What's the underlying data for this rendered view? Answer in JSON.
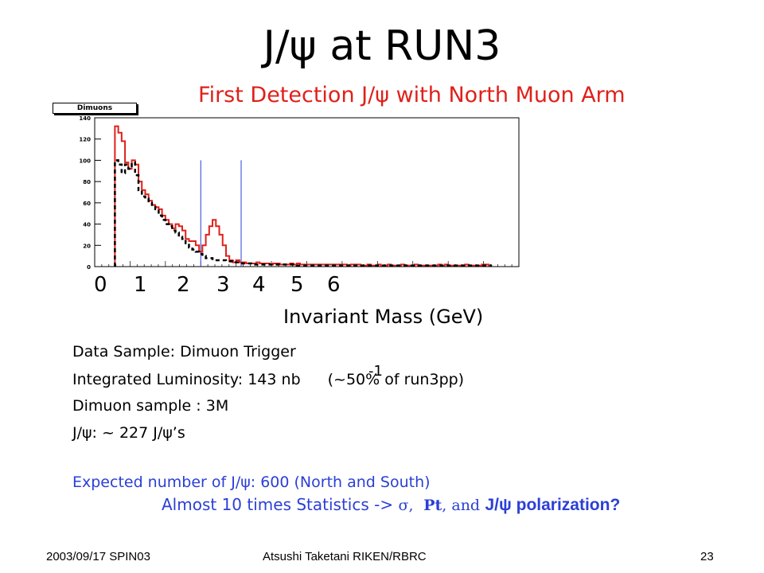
{
  "slide": {
    "title": "J/ψ   at RUN3",
    "subtitle": "First Detection J/ψ with North Muon Arm",
    "legend_label": "Dimuons",
    "info_lines": [
      "Data Sample: Dimuon Trigger",
      "Integrated Luminosity: 143 nb",
      "Dimuon sample : 3M",
      "J/ψ: ~ 227 J/ψ’s"
    ],
    "lumi_exponent": "-1",
    "lumi_suffix": "(~50% of run3pp)",
    "expected_line": "Expected number of J/ψ: 600 (North and South)",
    "stats_prefix": "Almost 10 times Statistics -> ",
    "stats_sigma": "σ,",
    "stats_pt": "Pt",
    "stats_and": ", and",
    "stats_pol": "J/ψ polarization?",
    "footer_left": "2003/09/17 SPIN03",
    "footer_center": "Atsushi Taketani RIKEN/RBRC",
    "footer_right": "23"
  },
  "colors": {
    "subtitle": "#e0201a",
    "blue_text": "#2b3fd6",
    "signal": "#e0201a",
    "background": "#000000",
    "window": "#2b3fd6"
  },
  "chart_data": {
    "type": "histogram",
    "title": "Dimuons",
    "xlabel": "Invariant Mass (GeV)",
    "ylabel": "",
    "x_ticks": [
      "0",
      "1",
      "2",
      "3",
      "4",
      "5",
      "6"
    ],
    "y_ticks": [
      0,
      20,
      40,
      60,
      80,
      100,
      120,
      140
    ],
    "xlim": [
      -0.6,
      12.0
    ],
    "ylim": [
      0,
      140
    ],
    "bin_width": 0.1,
    "bin_start": 0.0,
    "mass_window_lines": [
      2.55,
      3.75
    ],
    "series": [
      {
        "style": "solid-red",
        "values": [
          132,
          126,
          118,
          98,
          92,
          100,
          96,
          80,
          72,
          68,
          62,
          58,
          56,
          54,
          48,
          44,
          40,
          36,
          40,
          38,
          34,
          26,
          24,
          24,
          20,
          14,
          20,
          30,
          38,
          44,
          38,
          30,
          20,
          10,
          6,
          4,
          6,
          4,
          4,
          3,
          3,
          3,
          4,
          3,
          3,
          3,
          2,
          3,
          3,
          2,
          2,
          2,
          3,
          2,
          3,
          2,
          2,
          2,
          2,
          2,
          2,
          2,
          2,
          2,
          2,
          2,
          2,
          2,
          2,
          1,
          2,
          2,
          2,
          1,
          1,
          2,
          1,
          1,
          2,
          1,
          1,
          2,
          1,
          1,
          1,
          2,
          1,
          1,
          1,
          2,
          1,
          1,
          1,
          1,
          1,
          1,
          2,
          1,
          2,
          1,
          1,
          1,
          1,
          1,
          2,
          1,
          1,
          1,
          1,
          2,
          2,
          1
        ]
      },
      {
        "style": "dashed-black",
        "values": [
          100,
          96,
          88,
          96,
          92,
          98,
          86,
          72,
          66,
          64,
          60,
          58,
          54,
          48,
          44,
          40,
          38,
          34,
          32,
          28,
          26,
          22,
          18,
          16,
          14,
          12,
          10,
          8,
          8,
          6,
          6,
          6,
          6,
          5,
          5,
          4,
          4,
          3,
          3,
          3,
          3,
          2,
          2,
          2,
          2,
          2,
          2,
          2,
          2,
          2,
          2,
          2,
          2,
          2,
          1,
          1,
          1,
          1,
          1,
          1,
          1,
          1,
          1,
          1,
          1,
          1,
          1,
          1,
          1,
          1,
          1,
          1,
          1,
          1,
          1,
          1,
          1,
          1,
          1,
          1,
          1,
          1,
          1,
          1,
          1,
          1,
          1,
          1,
          1,
          1,
          1,
          1,
          1,
          1,
          1,
          1,
          1,
          1,
          1,
          1,
          1,
          1,
          1,
          1,
          1,
          1,
          1,
          1,
          1,
          1,
          1,
          1
        ]
      }
    ]
  }
}
